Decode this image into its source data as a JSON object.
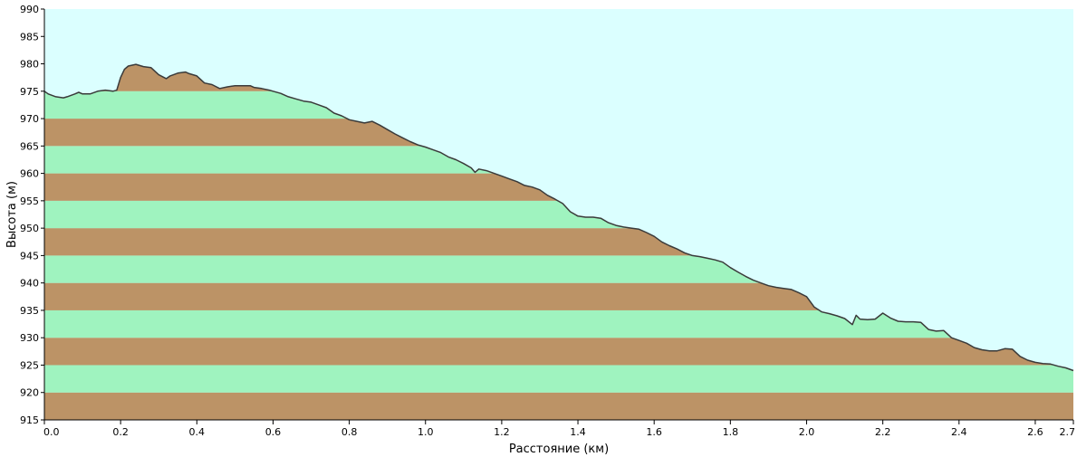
{
  "chart_data": {
    "type": "area",
    "xlabel": "Расстояние  (км)",
    "ylabel": "Высота (м)",
    "xlim": [
      0.0,
      2.7
    ],
    "ylim": [
      915,
      990
    ],
    "x_ticks": [
      0.0,
      0.2,
      0.4,
      0.6,
      0.8,
      1.0,
      1.2,
      1.4,
      1.6,
      1.8,
      2.0,
      2.2,
      2.4,
      2.6,
      2.7
    ],
    "x_tick_labels": [
      "0.0",
      "0.2",
      "0.4",
      "0.6",
      "0.8",
      "1.0",
      "1.2",
      "1.4",
      "1.6",
      "1.8",
      "2.0",
      "2.2",
      "2.4",
      "2.6",
      "2.7"
    ],
    "y_ticks": [
      915,
      920,
      925,
      930,
      935,
      940,
      945,
      950,
      955,
      960,
      965,
      970,
      975,
      980,
      985,
      990
    ],
    "y_tick_labels": [
      "915",
      "920",
      "925",
      "930",
      "935",
      "940",
      "945",
      "950",
      "955",
      "960",
      "965",
      "970",
      "975",
      "980",
      "985",
      "990"
    ],
    "band_step": 5,
    "grid": false,
    "legend": "none",
    "colors": {
      "sky": "#dbffff",
      "band_brown": "#bc9366",
      "band_green": "#9ff3bf",
      "profile_line": "#3a3a3a",
      "axis": "#000000"
    },
    "x": [
      0.0,
      0.01,
      0.03,
      0.05,
      0.06,
      0.08,
      0.09,
      0.1,
      0.12,
      0.14,
      0.16,
      0.18,
      0.19,
      0.2,
      0.21,
      0.22,
      0.24,
      0.26,
      0.28,
      0.3,
      0.32,
      0.33,
      0.35,
      0.37,
      0.38,
      0.4,
      0.42,
      0.44,
      0.46,
      0.48,
      0.5,
      0.52,
      0.54,
      0.55,
      0.57,
      0.59,
      0.6,
      0.62,
      0.64,
      0.66,
      0.68,
      0.7,
      0.72,
      0.74,
      0.76,
      0.78,
      0.8,
      0.82,
      0.84,
      0.86,
      0.88,
      0.9,
      0.92,
      0.94,
      0.96,
      0.98,
      1.0,
      1.02,
      1.04,
      1.06,
      1.08,
      1.1,
      1.12,
      1.13,
      1.14,
      1.16,
      1.18,
      1.2,
      1.22,
      1.24,
      1.26,
      1.28,
      1.3,
      1.32,
      1.34,
      1.36,
      1.38,
      1.4,
      1.42,
      1.44,
      1.46,
      1.48,
      1.5,
      1.52,
      1.54,
      1.56,
      1.58,
      1.6,
      1.62,
      1.64,
      1.66,
      1.68,
      1.7,
      1.72,
      1.74,
      1.76,
      1.78,
      1.8,
      1.82,
      1.84,
      1.86,
      1.88,
      1.9,
      1.92,
      1.94,
      1.96,
      1.98,
      2.0,
      2.02,
      2.04,
      2.06,
      2.08,
      2.1,
      2.12,
      2.13,
      2.14,
      2.16,
      2.18,
      2.2,
      2.22,
      2.24,
      2.26,
      2.28,
      2.3,
      2.32,
      2.34,
      2.36,
      2.38,
      2.4,
      2.42,
      2.44,
      2.46,
      2.48,
      2.5,
      2.52,
      2.54,
      2.56,
      2.58,
      2.6,
      2.62,
      2.64,
      2.66,
      2.68,
      2.7
    ],
    "elevation": [
      975,
      974.5,
      974,
      973.8,
      974,
      974.5,
      974.8,
      974.5,
      974.5,
      975,
      975.2,
      975,
      975.2,
      977.5,
      979,
      979.6,
      979.9,
      979.5,
      979.3,
      978,
      977.3,
      977.8,
      978.3,
      978.5,
      978.2,
      977.8,
      976.5,
      976.2,
      975.5,
      975.8,
      976,
      976,
      976,
      975.7,
      975.5,
      975.2,
      975,
      974.6,
      974,
      973.6,
      973.2,
      973,
      972.5,
      972,
      971,
      970.5,
      969.8,
      969.5,
      969.2,
      969.5,
      968.8,
      968,
      967.2,
      966.5,
      965.8,
      965.2,
      964.8,
      964.3,
      963.8,
      963,
      962.5,
      961.8,
      961,
      960.2,
      960.8,
      960.5,
      960,
      959.5,
      959,
      958.5,
      957.8,
      957.5,
      957,
      956,
      955.3,
      954.5,
      953,
      952.2,
      952,
      952,
      951.8,
      951,
      950.5,
      950.2,
      950,
      949.8,
      949.2,
      948.5,
      947.5,
      946.8,
      946.2,
      945.5,
      945,
      944.8,
      944.5,
      944.2,
      943.8,
      942.8,
      942,
      941.2,
      940.5,
      940,
      939.5,
      939.2,
      939,
      938.8,
      938.2,
      937.5,
      935.6,
      934.7,
      934.4,
      934,
      933.5,
      932.4,
      934.1,
      933.4,
      933.3,
      933.4,
      934.5,
      933.6,
      933,
      932.9,
      932.9,
      932.8,
      931.5,
      931.2,
      931.3,
      930,
      929.5,
      929,
      928.2,
      927.8,
      927.6,
      927.6,
      928,
      927.9,
      926.6,
      925.9,
      925.5,
      925.3,
      925.2,
      924.8,
      924.5,
      924
    ]
  }
}
